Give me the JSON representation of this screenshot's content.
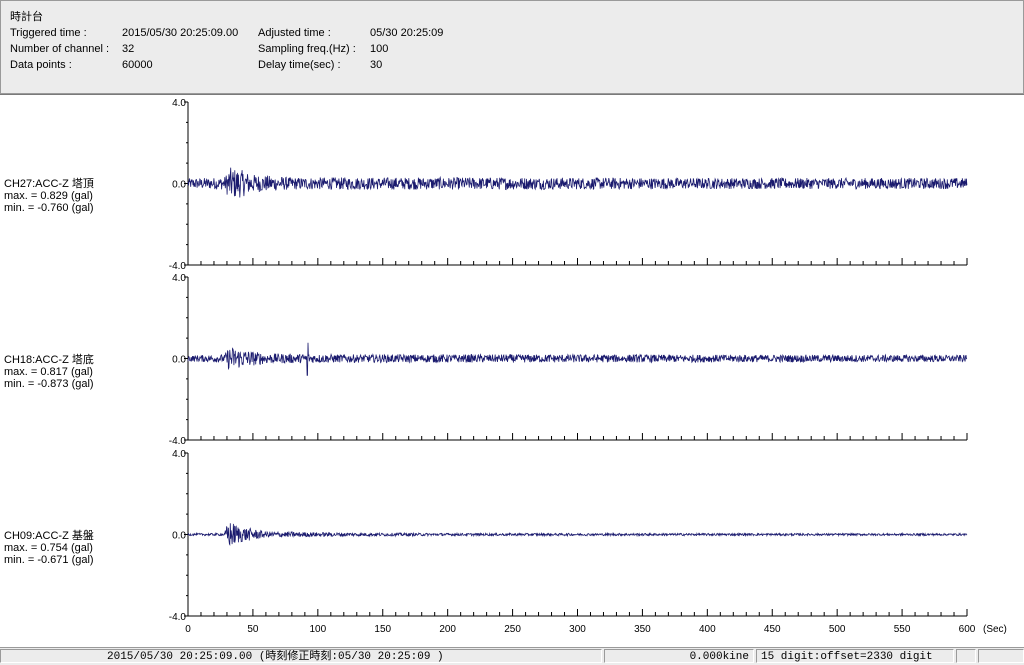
{
  "header": {
    "title": "時計台",
    "triggered_label": "Triggered time :",
    "triggered_value": "2015/05/30 20:25:09.00",
    "channels_label": "Number of channel :",
    "channels_value": "32",
    "datapoints_label": "Data points :",
    "datapoints_value": "60000",
    "adjusted_label": "Adjusted time :",
    "adjusted_value": "05/30 20:25:09",
    "sampling_label": "Sampling freq.(Hz) :",
    "sampling_value": "100",
    "delay_label": "Delay time(sec) :",
    "delay_value": "30"
  },
  "channels": [
    {
      "name": "CH27:ACC-Z 塔頂",
      "max": "max. = 0.829 (gal)",
      "min": "min. = -0.760 (gal)"
    },
    {
      "name": "CH18:ACC-Z 塔底",
      "max": "max. = 0.817 (gal)",
      "min": "min. = -0.873 (gal)"
    },
    {
      "name": "CH09:ACC-Z 基盤",
      "max": "max. = 0.754 (gal)",
      "min": "min. = -0.671 (gal)"
    }
  ],
  "status": {
    "time": "2015/05/30 20:25:09.00  (時刻修正時刻:05/30 20:25:09  )",
    "velocity": "0.000kine",
    "digit": "15 digit:offset=2330 digit"
  },
  "colors": {
    "trace": "#1a1a6e",
    "header_bg": "#ececec"
  },
  "chart_data": [
    {
      "type": "line",
      "series_label": "CH27:ACC-Z 塔頂",
      "xlim": [
        0,
        600
      ],
      "ylim": [
        -4.0,
        4.0
      ],
      "y_ticks": [
        "4.0",
        "0.0",
        "-4.0"
      ],
      "x_ticks": [
        0,
        50,
        100,
        150,
        200,
        250,
        300,
        350,
        400,
        450,
        500,
        550,
        600
      ],
      "x_unit": "(Sec)",
      "max": 0.829,
      "min": -0.76,
      "envelope": [
        {
          "t": 0,
          "a": 0.25
        },
        {
          "t": 28,
          "a": 0.3
        },
        {
          "t": 32,
          "a": 0.8
        },
        {
          "t": 40,
          "a": 0.7
        },
        {
          "t": 50,
          "a": 0.45
        },
        {
          "t": 80,
          "a": 0.3
        },
        {
          "t": 150,
          "a": 0.3
        },
        {
          "t": 250,
          "a": 0.3
        },
        {
          "t": 400,
          "a": 0.27
        },
        {
          "t": 600,
          "a": 0.27
        }
      ]
    },
    {
      "type": "line",
      "series_label": "CH18:ACC-Z 塔底",
      "xlim": [
        0,
        600
      ],
      "ylim": [
        -4.0,
        4.0
      ],
      "y_ticks": [
        "4.0",
        "0.0",
        "-4.0"
      ],
      "x_ticks": [
        0,
        50,
        100,
        150,
        200,
        250,
        300,
        350,
        400,
        450,
        500,
        550,
        600
      ],
      "x_unit": "(Sec)",
      "max": 0.817,
      "min": -0.873,
      "spike_t": 92,
      "envelope": [
        {
          "t": 0,
          "a": 0.15
        },
        {
          "t": 28,
          "a": 0.2
        },
        {
          "t": 32,
          "a": 0.6
        },
        {
          "t": 42,
          "a": 0.45
        },
        {
          "t": 60,
          "a": 0.25
        },
        {
          "t": 120,
          "a": 0.2
        },
        {
          "t": 250,
          "a": 0.2
        },
        {
          "t": 600,
          "a": 0.17
        }
      ]
    },
    {
      "type": "line",
      "series_label": "CH09:ACC-Z 基盤",
      "xlim": [
        0,
        600
      ],
      "ylim": [
        -4.0,
        4.0
      ],
      "y_ticks": [
        "4.0",
        "0.0",
        "-4.0"
      ],
      "x_ticks": [
        0,
        50,
        100,
        150,
        200,
        250,
        300,
        350,
        400,
        450,
        500,
        550,
        600
      ],
      "x_unit": "(Sec)",
      "max": 0.754,
      "min": -0.671,
      "envelope": [
        {
          "t": 0,
          "a": 0.05
        },
        {
          "t": 28,
          "a": 0.06
        },
        {
          "t": 31,
          "a": 0.7
        },
        {
          "t": 40,
          "a": 0.4
        },
        {
          "t": 60,
          "a": 0.15
        },
        {
          "t": 120,
          "a": 0.09
        },
        {
          "t": 200,
          "a": 0.06
        },
        {
          "t": 600,
          "a": 0.05
        }
      ]
    }
  ]
}
